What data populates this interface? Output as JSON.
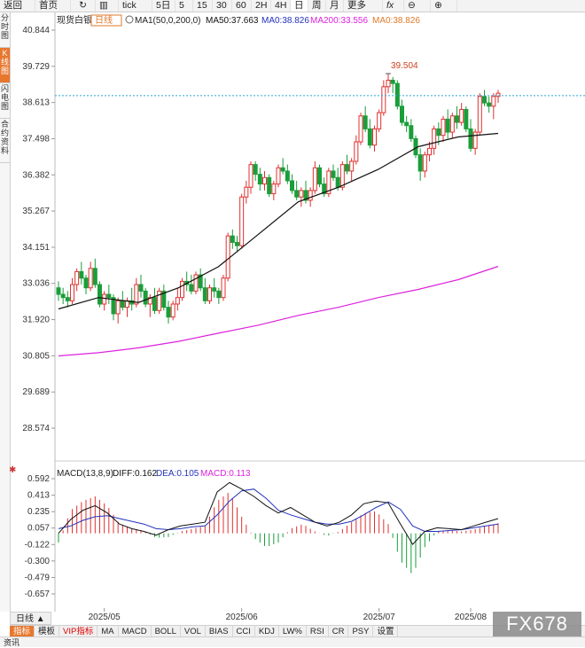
{
  "toolbar": {
    "items": [
      "返回",
      "首页",
      "↻",
      "",
      "tick",
      "5日",
      "5",
      "15",
      "30",
      "60",
      "2H",
      "4H",
      "日",
      "周",
      "月",
      "更多",
      "fx",
      "",
      ""
    ]
  },
  "sidebar": {
    "items": [
      "分时图",
      "K线图",
      "闪电图",
      "合约资料"
    ]
  },
  "header": {
    "symbol": "现货白银",
    "period_badge": "日线",
    "ma_text": "MA1(50,0,200,0)",
    "ma50_text": "MA50:37.663",
    "ma0a_text": "MA0:38.826",
    "ma200_text": "MA200:33.556",
    "ma0b_text": "MA0:38.826"
  },
  "macd_header": {
    "name": "MACD(13,8,9)",
    "diff": "DIFF:0.162",
    "dea": "DEA:0.105",
    "macd": "MACD:0.113"
  },
  "bottom": {
    "period_button": "日线 ▲"
  },
  "indicators": [
    "指标",
    "模板",
    "VIP指标",
    "MA",
    "MACD",
    "BOLL",
    "VOL",
    "BIAS",
    "CCI",
    "KDJ",
    "LW%",
    "RSI",
    "CR",
    "PSY",
    "设置"
  ],
  "status_text": "资讯",
  "watermark": "FX678",
  "colors": {
    "up": "#e03030",
    "down": "#1a9e3a",
    "ma50": "#111111",
    "ma200": "#dd22dd",
    "dif": "#111111",
    "dea": "#2233bb",
    "current": "#2aa6d6",
    "orange": "#e07a2a"
  },
  "chart_data": [
    {
      "type": "candlestick",
      "title": "现货白银 日线",
      "y_ticks": [
        40.844,
        39.729,
        38.613,
        37.498,
        36.382,
        35.267,
        34.151,
        33.036,
        31.92,
        30.805,
        29.689,
        28.574
      ],
      "x_ticks": [
        "2025/05",
        "2025/06",
        "2025/07",
        "2025/08"
      ],
      "current_price": 38.826,
      "high_annotation": {
        "label": "39.504",
        "value": 39.504
      },
      "ohlc": [
        [
          32.9,
          33.1,
          32.5,
          32.7
        ],
        [
          32.7,
          32.9,
          32.4,
          32.6
        ],
        [
          32.6,
          32.8,
          32.3,
          32.5
        ],
        [
          32.5,
          33.2,
          32.4,
          33.0
        ],
        [
          33.0,
          33.5,
          32.8,
          33.4
        ],
        [
          33.4,
          33.7,
          33.0,
          33.2
        ],
        [
          33.2,
          33.3,
          32.7,
          32.9
        ],
        [
          32.9,
          33.7,
          32.8,
          33.5
        ],
        [
          33.5,
          33.8,
          32.9,
          33.0
        ],
        [
          33.0,
          33.1,
          32.3,
          32.4
        ],
        [
          32.4,
          32.8,
          32.2,
          32.7
        ],
        [
          32.7,
          33.0,
          32.4,
          32.6
        ],
        [
          32.6,
          32.7,
          31.9,
          32.1
        ],
        [
          32.1,
          32.6,
          31.8,
          32.5
        ],
        [
          32.5,
          32.8,
          32.2,
          32.3
        ],
        [
          32.3,
          32.6,
          32.0,
          32.5
        ],
        [
          32.5,
          32.9,
          32.2,
          32.4
        ],
        [
          32.4,
          33.2,
          32.3,
          33.0
        ],
        [
          33.0,
          33.3,
          32.6,
          32.8
        ],
        [
          32.8,
          32.9,
          32.3,
          32.4
        ],
        [
          32.4,
          32.7,
          32.0,
          32.6
        ],
        [
          32.6,
          32.9,
          32.1,
          32.2
        ],
        [
          32.2,
          32.9,
          32.1,
          32.8
        ],
        [
          32.8,
          33.0,
          32.2,
          32.3
        ],
        [
          32.3,
          32.5,
          31.8,
          32.0
        ],
        [
          32.0,
          32.5,
          31.9,
          32.4
        ],
        [
          32.4,
          32.9,
          32.2,
          32.6
        ],
        [
          32.6,
          33.2,
          32.5,
          33.1
        ],
        [
          33.1,
          33.4,
          32.8,
          33.0
        ],
        [
          33.0,
          33.3,
          32.7,
          32.8
        ],
        [
          32.8,
          33.4,
          32.7,
          33.3
        ],
        [
          33.3,
          33.5,
          32.8,
          32.9
        ],
        [
          32.9,
          33.2,
          32.4,
          32.5
        ],
        [
          32.5,
          33.0,
          32.4,
          32.9
        ],
        [
          32.9,
          33.2,
          32.6,
          32.8
        ],
        [
          32.8,
          32.9,
          32.4,
          32.6
        ],
        [
          32.6,
          33.3,
          32.5,
          33.2
        ],
        [
          33.2,
          34.6,
          33.1,
          34.5
        ],
        [
          34.5,
          34.7,
          34.1,
          34.3
        ],
        [
          34.3,
          34.5,
          34.0,
          34.2
        ],
        [
          34.2,
          35.8,
          34.1,
          35.7
        ],
        [
          35.7,
          36.2,
          35.5,
          36.0
        ],
        [
          36.0,
          36.8,
          35.8,
          36.7
        ],
        [
          36.7,
          36.8,
          36.2,
          36.4
        ],
        [
          36.4,
          36.6,
          35.9,
          36.1
        ],
        [
          36.1,
          36.5,
          35.9,
          36.3
        ],
        [
          36.3,
          36.4,
          35.7,
          35.8
        ],
        [
          35.8,
          36.2,
          35.6,
          36.1
        ],
        [
          36.1,
          36.7,
          36.0,
          36.6
        ],
        [
          36.6,
          36.9,
          36.4,
          36.5
        ],
        [
          36.5,
          36.7,
          36.1,
          36.2
        ],
        [
          36.2,
          36.4,
          35.8,
          35.9
        ],
        [
          35.9,
          36.2,
          35.6,
          35.7
        ],
        [
          35.7,
          36.0,
          35.4,
          35.9
        ],
        [
          35.9,
          36.2,
          35.5,
          35.6
        ],
        [
          35.6,
          36.0,
          35.4,
          35.9
        ],
        [
          35.9,
          36.8,
          35.8,
          36.6
        ],
        [
          36.6,
          36.7,
          36.0,
          36.1
        ],
        [
          36.1,
          36.3,
          35.7,
          35.8
        ],
        [
          35.8,
          36.6,
          35.7,
          36.5
        ],
        [
          36.5,
          36.7,
          36.2,
          36.3
        ],
        [
          36.3,
          36.6,
          35.9,
          36.0
        ],
        [
          36.0,
          36.8,
          35.9,
          36.7
        ],
        [
          36.7,
          37.0,
          36.4,
          36.5
        ],
        [
          36.5,
          36.9,
          36.2,
          36.8
        ],
        [
          36.8,
          37.6,
          36.7,
          37.4
        ],
        [
          37.4,
          38.3,
          37.3,
          38.2
        ],
        [
          38.2,
          38.5,
          37.7,
          37.8
        ],
        [
          37.8,
          38.1,
          37.2,
          37.3
        ],
        [
          37.3,
          37.9,
          37.1,
          37.8
        ],
        [
          37.8,
          38.4,
          37.7,
          38.3
        ],
        [
          38.3,
          39.3,
          38.2,
          39.1
        ],
        [
          39.1,
          39.5,
          38.9,
          39.3
        ],
        [
          39.3,
          39.4,
          38.9,
          39.2
        ],
        [
          39.2,
          39.3,
          38.4,
          38.5
        ],
        [
          38.5,
          38.7,
          37.9,
          38.0
        ],
        [
          38.0,
          38.2,
          37.7,
          37.9
        ],
        [
          37.9,
          38.1,
          37.4,
          37.5
        ],
        [
          37.5,
          37.6,
          36.9,
          37.0
        ],
        [
          37.0,
          37.2,
          36.2,
          36.5
        ],
        [
          36.5,
          37.1,
          36.3,
          37.0
        ],
        [
          37.0,
          37.4,
          36.8,
          37.2
        ],
        [
          37.2,
          37.9,
          37.0,
          37.8
        ],
        [
          37.8,
          38.0,
          37.3,
          37.6
        ],
        [
          37.6,
          38.2,
          37.4,
          38.1
        ],
        [
          38.1,
          38.4,
          37.5,
          37.7
        ],
        [
          37.7,
          38.3,
          37.5,
          38.2
        ],
        [
          38.2,
          38.5,
          37.8,
          38.0
        ],
        [
          38.0,
          38.6,
          37.9,
          38.4
        ],
        [
          38.4,
          38.5,
          37.7,
          37.8
        ],
        [
          37.8,
          38.1,
          37.1,
          37.2
        ],
        [
          37.2,
          37.8,
          37.0,
          37.7
        ],
        [
          37.7,
          38.9,
          37.6,
          38.8
        ],
        [
          38.8,
          39.0,
          38.5,
          38.6
        ],
        [
          38.6,
          38.8,
          38.3,
          38.5
        ],
        [
          38.5,
          38.9,
          38.1,
          38.8
        ],
        [
          38.8,
          39.0,
          38.6,
          38.9
        ]
      ],
      "ma50": {
        "start_index": 0,
        "values": [
          32.25,
          32.6,
          32.45,
          32.9,
          33.55,
          34.55,
          35.55,
          36.0,
          36.55,
          37.25,
          37.55,
          37.66
        ],
        "end_index": 96
      },
      "ma200": {
        "start_index": 0,
        "values": [
          30.8,
          30.9,
          31.05,
          31.25,
          31.5,
          31.75,
          32.05,
          32.3,
          32.6,
          32.85,
          33.15,
          33.56
        ],
        "end_index": 96
      }
    },
    {
      "type": "macd",
      "name": "MACD(13,8,9)",
      "y_ticks": [
        0.592,
        0.413,
        0.235,
        0.057,
        -0.122,
        -0.3,
        -0.479,
        -0.657
      ],
      "dif": [
        0.0,
        0.15,
        0.25,
        0.3,
        0.22,
        0.1,
        0.05,
        0.02,
        -0.02,
        0.04,
        0.08,
        0.1,
        0.12,
        0.45,
        0.55,
        0.48,
        0.4,
        0.3,
        0.22,
        0.28,
        0.2,
        0.12,
        0.08,
        0.12,
        0.2,
        0.32,
        0.35,
        0.33,
        0.1,
        -0.12,
        0.02,
        0.06,
        0.05,
        0.04,
        0.08,
        0.12,
        0.16
      ],
      "dea": [
        0.05,
        0.08,
        0.14,
        0.18,
        0.19,
        0.16,
        0.13,
        0.1,
        0.05,
        0.04,
        0.05,
        0.07,
        0.08,
        0.2,
        0.35,
        0.46,
        0.48,
        0.38,
        0.25,
        0.2,
        0.16,
        0.12,
        0.1,
        0.1,
        0.13,
        0.2,
        0.28,
        0.34,
        0.26,
        0.08,
        0.02,
        0.02,
        0.03,
        0.04,
        0.06,
        0.08,
        0.1
      ],
      "hist": [
        -0.1,
        0.25,
        0.35,
        0.4,
        0.3,
        0.1,
        0.05,
        0.02,
        -0.05,
        -0.04,
        0.02,
        0.05,
        0.08,
        0.35,
        0.45,
        0.18,
        -0.05,
        -0.15,
        -0.1,
        0.05,
        0.1,
        0.02,
        -0.03,
        0.02,
        0.12,
        0.22,
        0.24,
        0.1,
        -0.3,
        -0.45,
        -0.15,
        0.02,
        0.03,
        0.02,
        0.04,
        0.08,
        0.11
      ]
    }
  ]
}
